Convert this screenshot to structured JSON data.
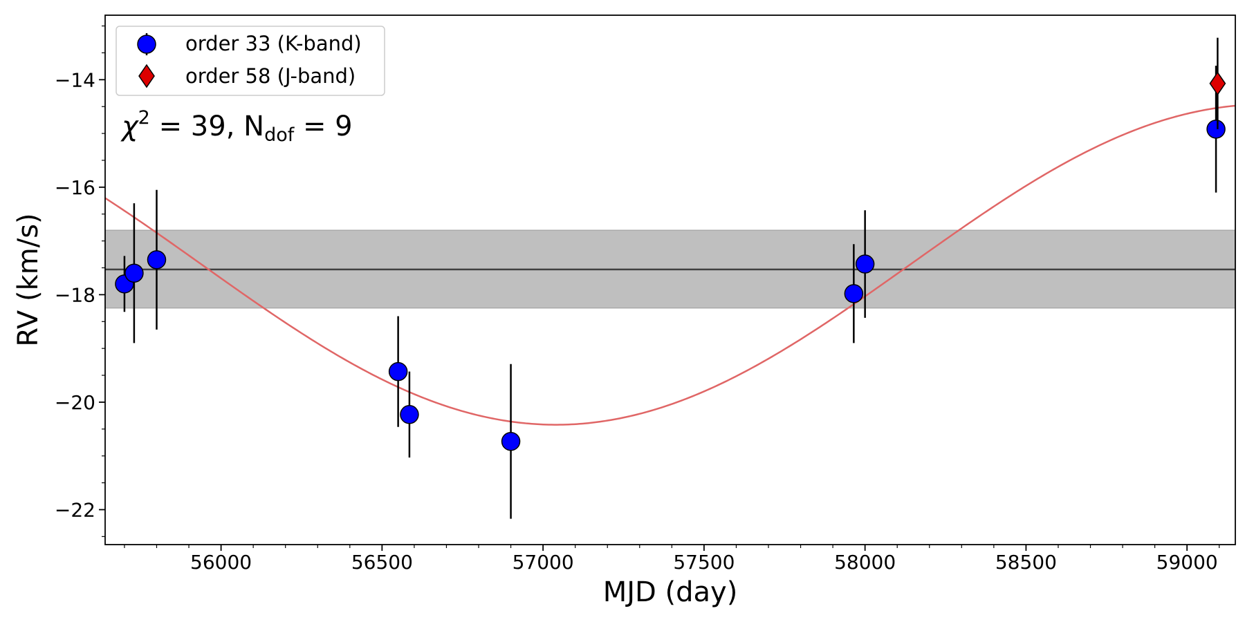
{
  "chart_data": {
    "type": "scatter",
    "xlabel": "MJD (day)",
    "ylabel": "RV (km/s)",
    "xlim": [
      55640,
      59150
    ],
    "ylim": [
      -22.65,
      -12.8
    ],
    "xticks": [
      56000,
      56500,
      57000,
      57500,
      58000,
      58500,
      59000
    ],
    "xtick_labels": [
      "56000",
      "56500",
      "57000",
      "57500",
      "58000",
      "58500",
      "59000"
    ],
    "yticks": [
      -22,
      -20,
      -18,
      -16,
      -14
    ],
    "ytick_labels": [
      "−22",
      "−20",
      "−18",
      "−16",
      "−14"
    ],
    "grid": false,
    "legend_position": "top-left",
    "annotation": {
      "chi_symbol": "χ",
      "chi_exp": "2",
      "eq1": " = 39, N",
      "dof_sub": "dof",
      "eq2": " = 9"
    },
    "mean_band": {
      "center": -17.53,
      "low": -18.25,
      "high": -16.8,
      "color": "#bfbfbf",
      "line_color": "#404040"
    },
    "model_curve": {
      "mean": -17.44,
      "amplitude": 2.98,
      "minimum_at": 57040,
      "half_period": 2200,
      "color": "#e06666"
    },
    "series": [
      {
        "name": "order 33 (K-band)",
        "marker": "circle",
        "color": "#0000ff",
        "points": [
          {
            "x": 55700,
            "y": -17.8,
            "err": 0.52
          },
          {
            "x": 55730,
            "y": -17.6,
            "err": 1.3
          },
          {
            "x": 55800,
            "y": -17.35,
            "err": 1.3
          },
          {
            "x": 56550,
            "y": -19.43,
            "err": 1.03
          },
          {
            "x": 56585,
            "y": -20.23,
            "err": 0.8
          },
          {
            "x": 56900,
            "y": -20.73,
            "err": 1.44
          },
          {
            "x": 57965,
            "y": -17.98,
            "err": 0.92
          },
          {
            "x": 58000,
            "y": -17.43,
            "err": 1.0
          },
          {
            "x": 59090,
            "y": -14.92,
            "err": 1.18
          }
        ]
      },
      {
        "name": "order 58 (J-band)",
        "marker": "diamond",
        "color": "#dd0000",
        "points": [
          {
            "x": 59095,
            "y": -14.07,
            "err": 0.85
          }
        ]
      }
    ]
  }
}
